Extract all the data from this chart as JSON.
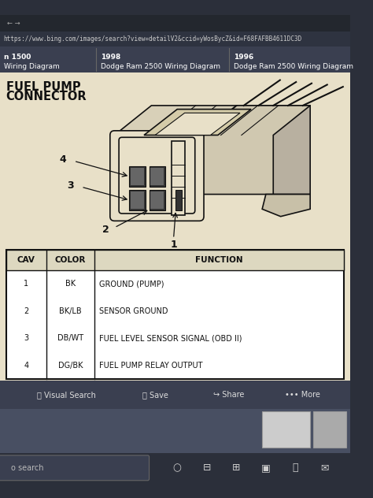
{
  "bg_outer": "#2b2f3a",
  "bg_browser": "#3a3f50",
  "bg_content": "#e8e0c8",
  "bg_nav": "#3a3f50",
  "bg_taskbar": "#2b2f3a",
  "url_text": "https://www.bing.com/images/search?view=detailV2&ccid=yWosBycZ&id=F68FAFBB4611DC3D",
  "nav_items": [
    "n 1500\nWiring Diagram",
    "1998\nDodge Ram 2500 Wiring Diagram",
    "1996\nDodge Ram 2500 Wiring Diagram"
  ],
  "title_line1": "FUEL PUMP",
  "title_line2": "CONNECTOR",
  "table_headers": [
    "CAV",
    "COLOR",
    "FUNCTION"
  ],
  "table_rows": [
    [
      "1",
      "BK",
      "GROUND (PUMP)"
    ],
    [
      "2",
      "BK/LB",
      "SENSOR GROUND"
    ],
    [
      "3",
      "DB/WT",
      "FUEL LEVEL SENSOR SIGNAL (OBD II)"
    ],
    [
      "4",
      "DG/BK",
      "FUEL PUMP RELAY OUTPUT"
    ]
  ],
  "bottom_buttons": [
    "⦿ Visual Search",
    "⬜ Save",
    "↪ Share",
    "••• More"
  ],
  "search_text": "o search"
}
